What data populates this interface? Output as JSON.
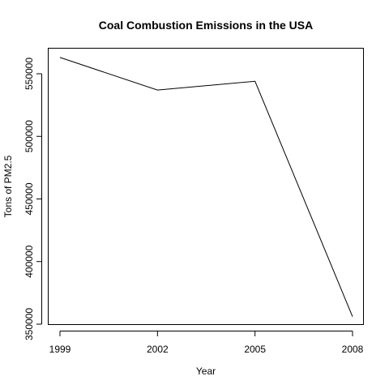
{
  "chart_data": {
    "type": "line",
    "title": "Coal Combustion Emissions in the USA",
    "xlabel": "Year",
    "ylabel": "Tons of PM2.5",
    "x": [
      1999,
      2002,
      2005,
      2008
    ],
    "series": [
      {
        "values": [
          563000,
          537000,
          544000,
          356000
        ]
      }
    ],
    "xlim": [
      1999,
      2008
    ],
    "ylim": [
      350000,
      570000
    ],
    "x_ticks": [
      "1999",
      "2002",
      "2005",
      "2008"
    ],
    "y_ticks": [
      "350000",
      "400000",
      "450000",
      "500000",
      "550000"
    ],
    "grid": false,
    "legend": "none",
    "line_color": "#000000"
  }
}
